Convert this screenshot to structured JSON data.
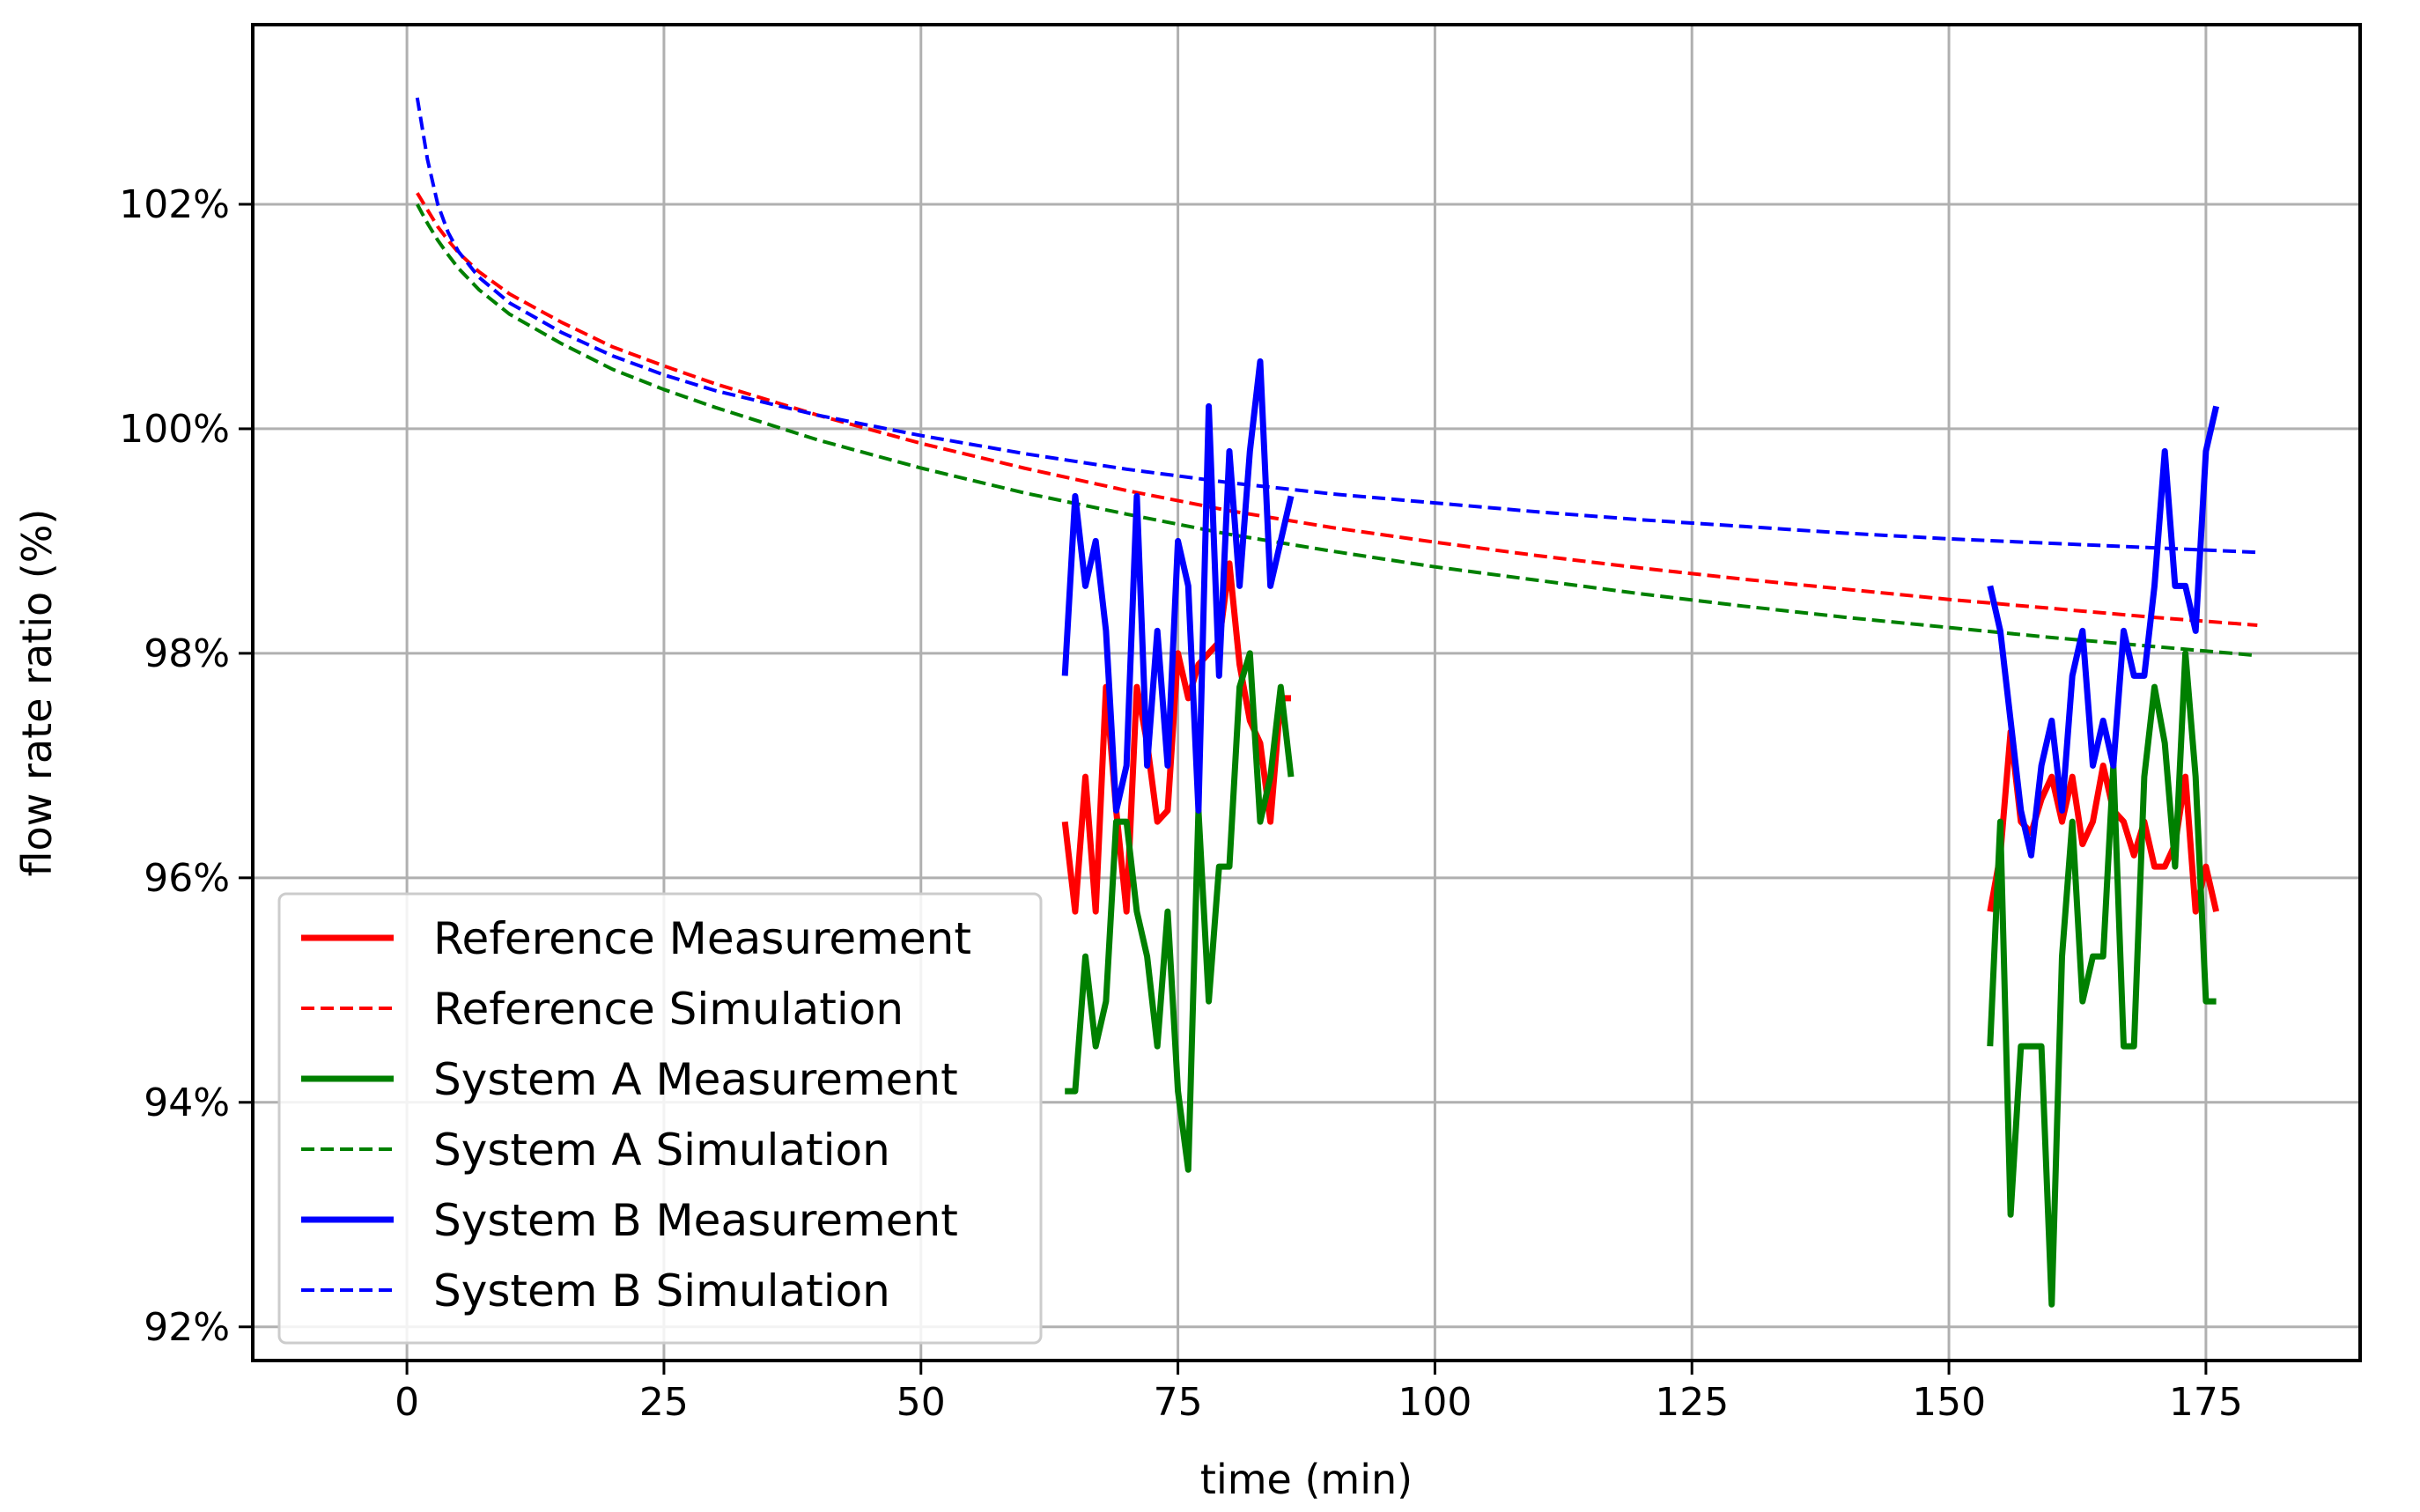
{
  "chart_data": {
    "type": "line",
    "title": "",
    "xlabel": "time (min)",
    "ylabel": "flow rate ratio (%)",
    "xlim": [
      -15,
      190
    ],
    "ylim": [
      91.7,
      103.6
    ],
    "xticks": [
      0,
      25,
      50,
      75,
      100,
      125,
      150,
      175
    ],
    "xtick_labels": [
      "0",
      "25",
      "50",
      "75",
      "100",
      "125",
      "150",
      "175"
    ],
    "yticks": [
      92,
      94,
      96,
      98,
      100,
      102
    ],
    "ytick_labels": [
      "92%",
      "94%",
      "96%",
      "98%",
      "100%",
      "102%"
    ],
    "grid": true,
    "legend_position": "lower-left",
    "series": [
      {
        "name": "Reference Measurement",
        "color": "#ff0000",
        "style": "solid",
        "segments": [
          {
            "x": [
              64,
              65,
              66,
              67,
              68,
              69,
              70,
              71,
              72,
              73,
              74,
              75,
              76,
              77,
              78,
              79,
              80,
              81,
              82,
              83,
              84,
              85,
              86
            ],
            "y": [
              96.5,
              95.7,
              96.9,
              95.7,
              97.7,
              96.6,
              95.7,
              97.7,
              97.2,
              96.5,
              96.6,
              98.0,
              97.6,
              97.9,
              98.0,
              98.1,
              98.8,
              97.9,
              97.4,
              97.2,
              96.5,
              97.6,
              97.6
            ]
          },
          {
            "x": [
              154,
              155,
              156,
              157,
              158,
              159,
              160,
              161,
              162,
              163,
              164,
              165,
              166,
              167,
              168,
              169,
              170,
              171,
              172,
              173,
              174,
              175,
              176
            ],
            "y": [
              95.7,
              96.2,
              97.3,
              96.5,
              96.4,
              96.7,
              96.9,
              96.5,
              96.9,
              96.3,
              96.5,
              97.0,
              96.6,
              96.5,
              96.2,
              96.5,
              96.1,
              96.1,
              96.3,
              96.9,
              95.7,
              96.1,
              95.7
            ]
          }
        ]
      },
      {
        "name": "Reference Simulation",
        "color": "#ff0000",
        "style": "dashed",
        "segments": [
          {
            "x": [
              1,
              2,
              3,
              4,
              5,
              7,
              10,
              15,
              20,
              25,
              30,
              40,
              50,
              60,
              70,
              80,
              90,
              100,
              110,
              120,
              130,
              140,
              150,
              160,
              170,
              180
            ],
            "y": [
              102.1,
              101.95,
              101.8,
              101.68,
              101.57,
              101.4,
              101.2,
              100.95,
              100.73,
              100.56,
              100.4,
              100.12,
              99.87,
              99.65,
              99.45,
              99.27,
              99.12,
              98.99,
              98.87,
              98.76,
              98.66,
              98.57,
              98.48,
              98.4,
              98.32,
              98.25
            ]
          }
        ]
      },
      {
        "name": "System A Measurement",
        "color": "#008000",
        "style": "solid",
        "segments": [
          {
            "x": [
              64,
              65,
              66,
              67,
              68,
              69,
              70,
              71,
              72,
              73,
              74,
              75,
              76,
              77,
              78,
              79,
              80,
              81,
              82,
              83,
              84,
              85,
              86
            ],
            "y": [
              94.1,
              94.1,
              95.3,
              94.5,
              94.9,
              96.5,
              96.5,
              95.7,
              95.3,
              94.5,
              95.7,
              94.1,
              93.4,
              96.6,
              94.9,
              96.1,
              96.1,
              97.7,
              98.0,
              96.5,
              96.9,
              97.7,
              96.9
            ]
          },
          {
            "x": [
              154,
              155,
              156,
              157,
              158,
              159,
              160,
              161,
              162,
              163,
              164,
              165,
              166,
              167,
              168,
              169,
              170,
              171,
              172,
              173,
              174,
              175,
              176
            ],
            "y": [
              94.5,
              96.5,
              93.0,
              94.5,
              94.5,
              94.5,
              92.2,
              95.3,
              96.5,
              94.9,
              95.3,
              95.3,
              97.0,
              94.5,
              94.5,
              96.9,
              97.7,
              97.2,
              96.1,
              98.0,
              96.9,
              94.9,
              94.9
            ]
          }
        ]
      },
      {
        "name": "System A Simulation",
        "color": "#008000",
        "style": "dashed",
        "segments": [
          {
            "x": [
              1,
              2,
              3,
              4,
              5,
              7,
              10,
              15,
              20,
              25,
              30,
              40,
              50,
              60,
              70,
              80,
              90,
              100,
              110,
              120,
              130,
              140,
              150,
              160,
              170,
              180
            ],
            "y": [
              102.0,
              101.83,
              101.68,
              101.55,
              101.43,
              101.24,
              101.02,
              100.76,
              100.53,
              100.35,
              100.19,
              99.9,
              99.65,
              99.43,
              99.24,
              99.06,
              98.91,
              98.77,
              98.65,
              98.53,
              98.42,
              98.32,
              98.23,
              98.14,
              98.06,
              97.98
            ]
          }
        ]
      },
      {
        "name": "System B Measurement",
        "color": "#0000ff",
        "style": "solid",
        "segments": [
          {
            "x": [
              64,
              65,
              66,
              67,
              68,
              69,
              70,
              71,
              72,
              73,
              74,
              75,
              76,
              77,
              78,
              79,
              80,
              81,
              82,
              83,
              84,
              85,
              86
            ],
            "y": [
              97.8,
              99.4,
              98.6,
              99.0,
              98.2,
              96.6,
              97.0,
              99.4,
              97.0,
              98.2,
              97.0,
              99.0,
              98.6,
              96.6,
              100.2,
              97.8,
              99.8,
              98.6,
              99.8,
              100.6,
              98.6,
              99.0,
              99.4
            ]
          },
          {
            "x": [
              154,
              155,
              156,
              157,
              158,
              159,
              160,
              161,
              162,
              163,
              164,
              165,
              166,
              167,
              168,
              169,
              170,
              171,
              172,
              173,
              174,
              175,
              176
            ],
            "y": [
              98.6,
              98.2,
              97.4,
              96.6,
              96.2,
              97.0,
              97.4,
              96.6,
              97.8,
              98.2,
              97.0,
              97.4,
              97.0,
              98.2,
              97.8,
              97.8,
              98.6,
              99.8,
              98.6,
              98.6,
              98.2,
              99.8,
              100.2
            ]
          }
        ]
      },
      {
        "name": "System B Simulation",
        "color": "#0000ff",
        "style": "dashed",
        "segments": [
          {
            "x": [
              1,
              2,
              3,
              4,
              5,
              7,
              10,
              15,
              20,
              25,
              30,
              40,
              50,
              60,
              70,
              80,
              90,
              100,
              110,
              120,
              130,
              140,
              150,
              160,
              170,
              180
            ],
            "y": [
              102.95,
              102.4,
              102.0,
              101.75,
              101.58,
              101.35,
              101.12,
              100.86,
              100.65,
              100.48,
              100.34,
              100.12,
              99.94,
              99.78,
              99.64,
              99.52,
              99.42,
              99.34,
              99.26,
              99.19,
              99.13,
              99.07,
              99.02,
              98.98,
              98.94,
              98.9
            ]
          }
        ]
      }
    ]
  }
}
